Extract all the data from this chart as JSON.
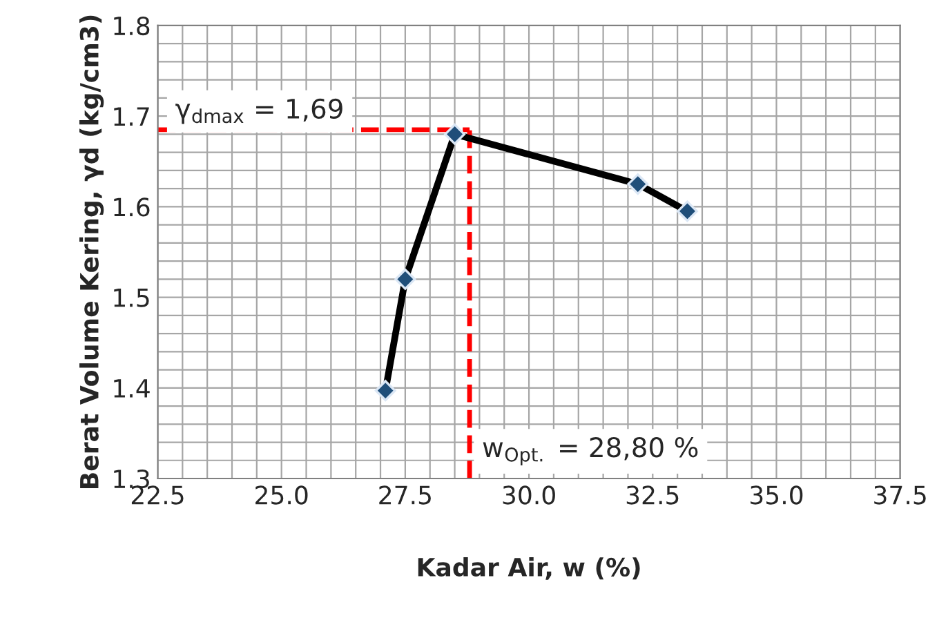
{
  "chart_data": {
    "type": "line",
    "xlabel": "Kadar Air, w (%)",
    "ylabel": "Berat Volume Kering, γd (kg/cm3)",
    "series": [
      {
        "color": "#000000",
        "x": [
          27.1,
          27.5,
          28.5,
          32.2,
          33.2
        ],
        "values": [
          1.397,
          1.52,
          1.68,
          1.625,
          1.595
        ]
      }
    ],
    "marker": "diamond",
    "line_style": "solid",
    "grid": true,
    "xlim": [
      22.5,
      37.5
    ],
    "ylim": [
      1.3,
      1.8
    ],
    "xticks": [
      {
        "value": 22.5,
        "label": "22.5"
      },
      {
        "value": 23.0,
        "label": null
      },
      {
        "value": 23.5,
        "label": null
      },
      {
        "value": 24.0,
        "label": null
      },
      {
        "value": 24.5,
        "label": null
      },
      {
        "value": 25.0,
        "label": "25.0"
      },
      {
        "value": 25.5,
        "label": null
      },
      {
        "value": 26.0,
        "label": null
      },
      {
        "value": 26.5,
        "label": null
      },
      {
        "value": 27.0,
        "label": null
      },
      {
        "value": 27.5,
        "label": "27.5"
      },
      {
        "value": 28.0,
        "label": null
      },
      {
        "value": 28.5,
        "label": null
      },
      {
        "value": 29.0,
        "label": null
      },
      {
        "value": 29.5,
        "label": null
      },
      {
        "value": 30.0,
        "label": "30.0"
      },
      {
        "value": 30.5,
        "label": null
      },
      {
        "value": 31.0,
        "label": null
      },
      {
        "value": 31.5,
        "label": null
      },
      {
        "value": 32.0,
        "label": null
      },
      {
        "value": 32.5,
        "label": "32.5"
      },
      {
        "value": 33.0,
        "label": null
      },
      {
        "value": 33.5,
        "label": null
      },
      {
        "value": 34.0,
        "label": null
      },
      {
        "value": 34.5,
        "label": null
      },
      {
        "value": 35.0,
        "label": "35.0"
      },
      {
        "value": 35.5,
        "label": null
      },
      {
        "value": 36.0,
        "label": null
      },
      {
        "value": 36.5,
        "label": null
      },
      {
        "value": 37.0,
        "label": null
      },
      {
        "value": 37.5,
        "label": "37.5"
      }
    ],
    "yticks": [
      1.3,
      {
        "value": 1.32,
        "label": null
      },
      {
        "value": 1.34,
        "label": null
      },
      {
        "value": 1.36,
        "label": null
      },
      {
        "value": 1.38,
        "label": null
      },
      1.4,
      {
        "value": 1.42,
        "label": null
      },
      {
        "value": 1.44,
        "label": null
      },
      {
        "value": 1.46,
        "label": null
      },
      {
        "value": 1.48,
        "label": null
      },
      1.5,
      {
        "value": 1.52,
        "label": null
      },
      {
        "value": 1.54,
        "label": null
      },
      {
        "value": 1.56,
        "label": null
      },
      {
        "value": 1.58,
        "label": null
      },
      1.6,
      {
        "value": 1.62,
        "label": null
      },
      {
        "value": 1.64,
        "label": null
      },
      {
        "value": 1.66,
        "label": null
      },
      {
        "value": 1.68,
        "label": null
      },
      1.7,
      {
        "value": 1.72,
        "label": null
      },
      {
        "value": 1.74,
        "label": null
      },
      {
        "value": 1.76,
        "label": null
      },
      {
        "value": 1.78,
        "label": null
      },
      1.8
    ],
    "ref_lines": [
      {
        "axis": "y",
        "value": 1.685,
        "label": "γ$_{dmax}$ = 1,69",
        "color": "#ff0000",
        "line_style": "dashed"
      },
      {
        "axis": "x",
        "value": 28.8,
        "label": "w$_{Opt.}$ = 28,80 %",
        "color": "#ff0000",
        "line_style": "dashed"
      }
    ]
  }
}
